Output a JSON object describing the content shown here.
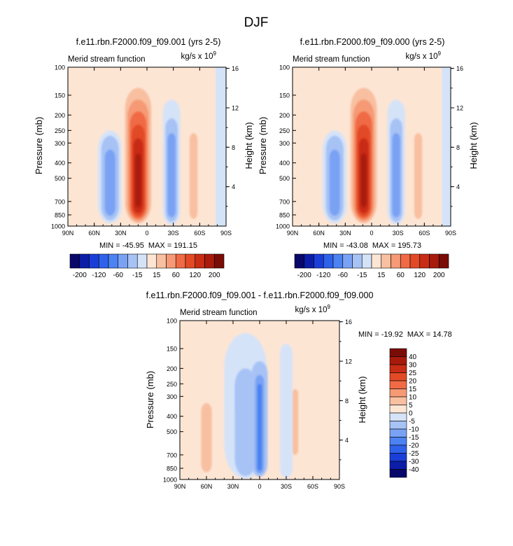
{
  "figure": {
    "title": "DJF"
  },
  "chart_data": [
    {
      "type": "contour",
      "title": "f.e11.rbn.F2000.f09_f09.001 (yrs 2-5)",
      "left_label": "Merid stream function",
      "units_label": "kg/s x 10",
      "units_exp": "9",
      "ylabel": "Pressure (mb)",
      "ylabel_right": "Height (km)",
      "x_ticks": [
        "90N",
        "60N",
        "30N",
        "0",
        "30S",
        "60S",
        "90S"
      ],
      "y_ticks": [
        "100",
        "150",
        "200",
        "250",
        "300",
        "400",
        "500",
        "700",
        "850",
        "1000"
      ],
      "height_ticks": [
        "16",
        "12",
        "8",
        "4"
      ],
      "min_label": "MIN = -45.95",
      "max_label": "MAX = 191.15",
      "min": -45.95,
      "max": 191.15,
      "colorbar_labels": [
        "-200",
        "-120",
        "-60",
        "-15",
        "15",
        "60",
        "120",
        "200"
      ]
    },
    {
      "type": "contour",
      "title": "f.e11.rbn.F2000.f09_f09.000 (yrs 2-5)",
      "left_label": "Merid stream function",
      "units_label": "kg/s x 10",
      "units_exp": "9",
      "ylabel": "Pressure (mb)",
      "ylabel_right": "Height (km)",
      "x_ticks": [
        "90N",
        "60N",
        "30N",
        "0",
        "30S",
        "60S",
        "90S"
      ],
      "y_ticks": [
        "100",
        "150",
        "200",
        "250",
        "300",
        "400",
        "500",
        "700",
        "850",
        "1000"
      ],
      "height_ticks": [
        "16",
        "12",
        "8",
        "4"
      ],
      "min_label": "MIN = -43.08",
      "max_label": "MAX = 195.73",
      "min": -43.08,
      "max": 195.73,
      "colorbar_labels": [
        "-200",
        "-120",
        "-60",
        "-15",
        "15",
        "60",
        "120",
        "200"
      ]
    },
    {
      "type": "contour",
      "title": "f.e11.rbn.F2000.f09_f09.001 - f.e11.rbn.F2000.f09_f09.000",
      "left_label": "Merid stream function",
      "units_label": "kg/s x 10",
      "units_exp": "9",
      "ylabel": "Pressure (mb)",
      "ylabel_right": "Height (km)",
      "x_ticks": [
        "90N",
        "60N",
        "30N",
        "0",
        "30S",
        "60S",
        "90S"
      ],
      "y_ticks": [
        "100",
        "150",
        "200",
        "250",
        "300",
        "400",
        "500",
        "700",
        "850",
        "1000"
      ],
      "height_ticks": [
        "16",
        "12",
        "8",
        "4"
      ],
      "min_label": "MIN = -19.92",
      "max_label": "MAX = 14.78",
      "min": -19.92,
      "max": 14.78,
      "colorbar_labels": [
        "40",
        "30",
        "25",
        "20",
        "15",
        "10",
        "5",
        "0",
        "-5",
        "-10",
        "-15",
        "-20",
        "-25",
        "-30",
        "-40"
      ]
    }
  ],
  "palettes": {
    "full": [
      "#08086b",
      "#0c1ea8",
      "#1a3fd8",
      "#2f62ea",
      "#4c82f1",
      "#7aa2f4",
      "#a7c2f5",
      "#d5e3f8",
      "#fde5d4",
      "#f8bfa0",
      "#f59a75",
      "#f06a45",
      "#e24a26",
      "#c82c14",
      "#a81a0c",
      "#7a0c06"
    ],
    "neg": [
      "#d5e3f8",
      "#a7c2f5",
      "#7aa2f4",
      "#4c82f1",
      "#2f62ea"
    ],
    "pos": [
      "#fde5d4",
      "#f8bfa0",
      "#f59a75",
      "#f06a45",
      "#e24a26",
      "#c82c14",
      "#a81a0c",
      "#7a0c06"
    ]
  }
}
